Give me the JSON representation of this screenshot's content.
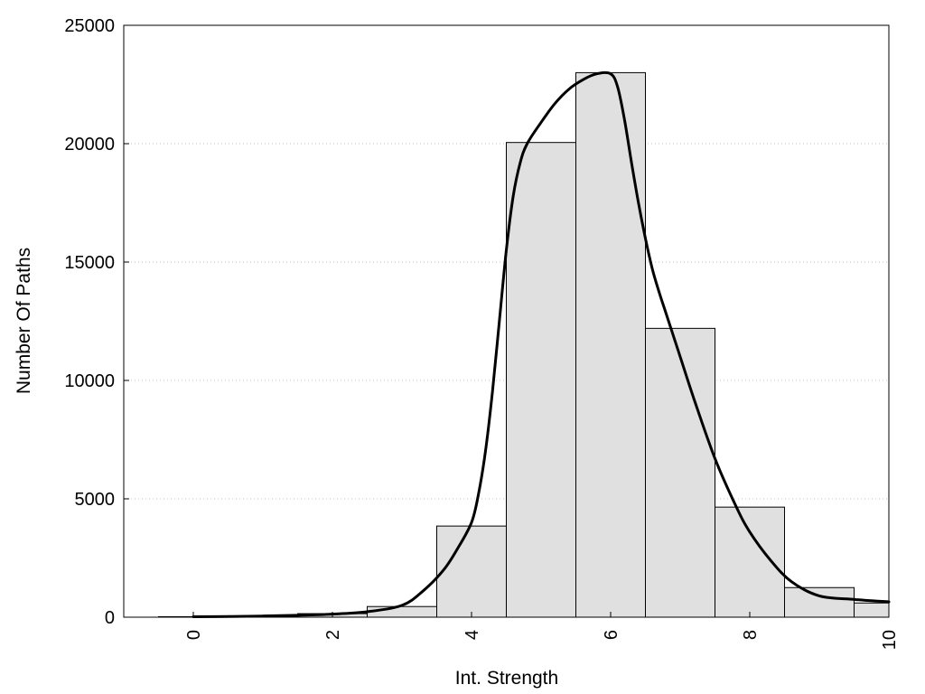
{
  "chart_data": {
    "type": "bar",
    "title": "",
    "xlabel": "Int. Strength",
    "ylabel": "Number Of Paths",
    "xlim": [
      -1,
      10
    ],
    "ylim": [
      0,
      25000
    ],
    "grid": "horizontal dotted",
    "x_ticks": [
      0,
      2,
      4,
      6,
      8,
      10
    ],
    "x_tick_labels": [
      "0",
      "2",
      "4",
      "6",
      "8",
      "10"
    ],
    "y_ticks": [
      0,
      5000,
      10000,
      15000,
      20000,
      25000
    ],
    "y_tick_labels": [
      "0",
      "5000",
      "10000",
      "15000",
      "20000",
      "25000"
    ],
    "bins": {
      "centers": [
        0,
        1,
        2,
        3,
        4,
        5,
        6,
        7,
        8,
        9,
        10
      ],
      "width": 1,
      "values": [
        20,
        50,
        150,
        450,
        3850,
        20050,
        23000,
        12200,
        4650,
        1250,
        600
      ]
    },
    "fit_curve": {
      "x": [
        0,
        0.5,
        1,
        1.5,
        2,
        2.5,
        3,
        3.3,
        3.6,
        3.8,
        4,
        4.1,
        4.2,
        4.3,
        4.4,
        4.5,
        4.6,
        4.7,
        4.8,
        5,
        5.2,
        5.4,
        5.6,
        5.8,
        6,
        6.1,
        6.2,
        6.3,
        6.4,
        6.5,
        6.6,
        6.7,
        6.8,
        7,
        7.2,
        7.5,
        7.8,
        8,
        8.3,
        8.6,
        9,
        9.5,
        10
      ],
      "y": [
        20,
        30,
        50,
        80,
        130,
        230,
        500,
        1100,
        2000,
        2900,
        4000,
        5200,
        7000,
        9500,
        12500,
        15500,
        17800,
        19200,
        20000,
        20900,
        21700,
        22300,
        22700,
        22950,
        22950,
        22400,
        21000,
        19200,
        17500,
        16000,
        14700,
        13700,
        12800,
        11000,
        9200,
        6700,
        4700,
        3600,
        2400,
        1500,
        900,
        750,
        650
      ],
      "color": "#000000"
    },
    "colors": {
      "bar_fill": "#e0e0e0",
      "bar_stroke": "#000000",
      "grid": "#c0c0c0"
    }
  }
}
